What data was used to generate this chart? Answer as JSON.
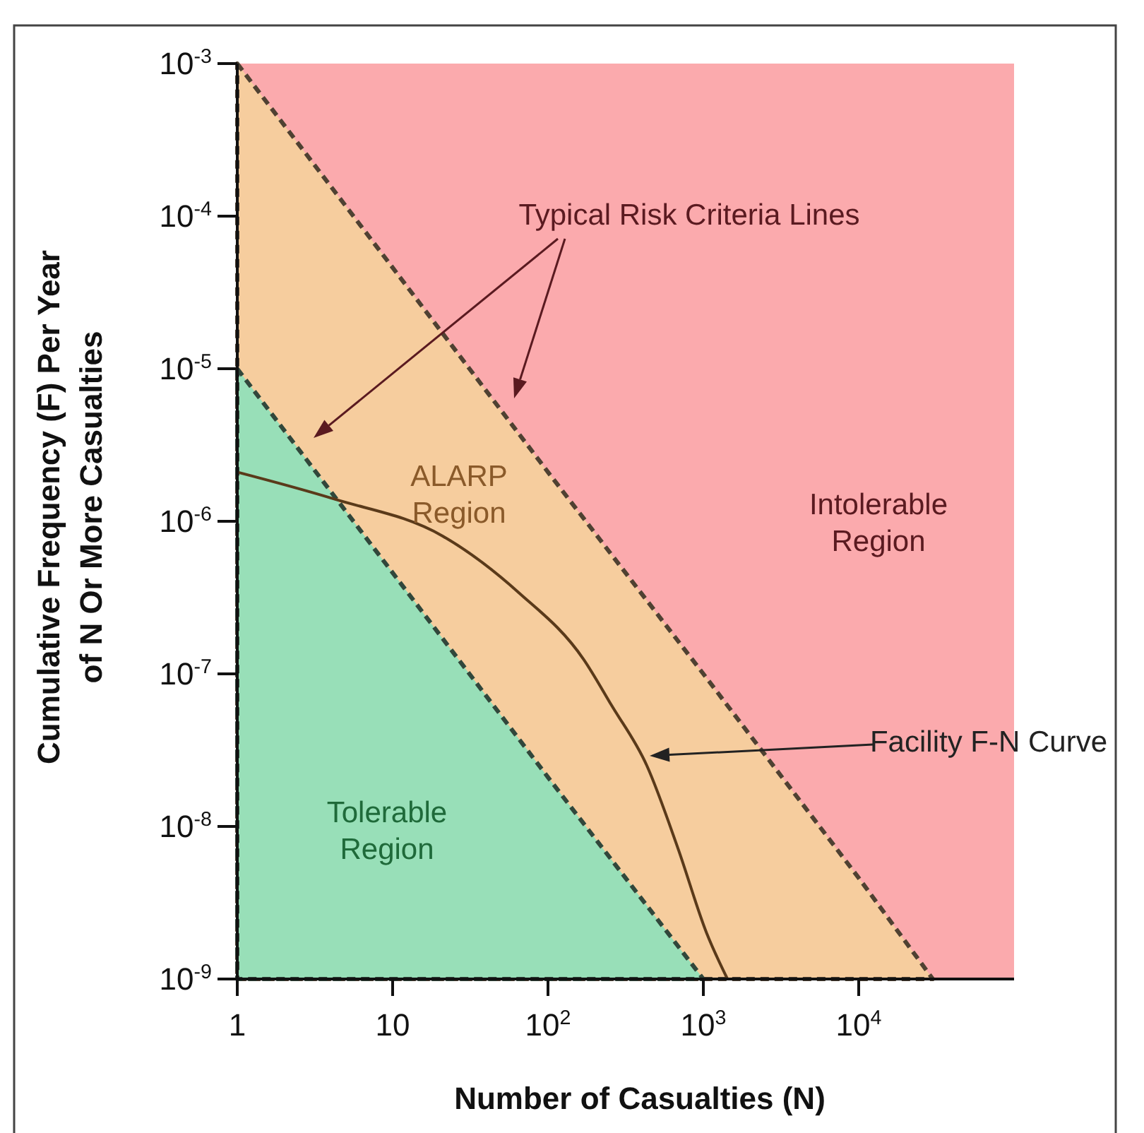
{
  "chart_data": {
    "type": "area",
    "xlabel": "Number of Casualties (N)",
    "ylabel": "Cumulative Frequency (F) Per Year\nof N Or More Casualties",
    "log": "xy",
    "xlim": [
      1,
      100000
    ],
    "ylim": [
      1e-09,
      0.001
    ],
    "xticks": [
      1,
      10,
      {
        "value": 100,
        "label": "10$^{2}$"
      },
      {
        "value": 1000,
        "label": "10$^{3}$"
      },
      {
        "value": 10000,
        "label": "10$^{4}$"
      }
    ],
    "yticks": [
      {
        "value": 1e-09,
        "label": "10$^{-9}$"
      },
      {
        "value": 1e-08,
        "label": "10$^{-8}$"
      },
      {
        "value": 1e-07,
        "label": "10$^{-7}$"
      },
      {
        "value": 1e-06,
        "label": "10$^{-6}$"
      },
      {
        "value": 1e-05,
        "label": "10$^{-5}$"
      },
      {
        "value": 0.0001,
        "label": "10$^{-4}$"
      },
      {
        "value": 0.001,
        "label": "10$^{-3}$"
      }
    ],
    "bands": [
      {
        "axis": "y",
        "from": 1e-09,
        "to": 0.001,
        "color": "#fbaaad"
      }
    ],
    "series": [
      {
        "color": "#f6cd9e",
        "line_style": "dashed",
        "x": [
          1,
          10,
          100,
          1000,
          10000,
          30000
        ],
        "values": [
          0.001,
          4.6e-05,
          2.1e-06,
          1e-07,
          4.6e-09,
          1e-09
        ]
      },
      {
        "color": "#98dfb8",
        "line_style": "dashed",
        "x": [
          1,
          10,
          100,
          1000
        ],
        "values": [
          1e-05,
          4.6e-07,
          2.1e-08,
          1e-09
        ]
      },
      {
        "type": "line",
        "color": "#5a3a1a",
        "line_style": "solid",
        "x": [
          1,
          4.2,
          21,
          65,
          170,
          257,
          433,
          686,
          1050,
          1430
        ],
        "values": [
          2.1e-06,
          1.4e-06,
          8e-07,
          3.4e-07,
          1.24e-07,
          6.2e-08,
          2.5e-08,
          7.2e-09,
          2e-09,
          1e-09
        ]
      }
    ],
    "annotations": [
      "Typical Risk Criteria Lines",
      "ALARP\nRegion",
      "Intolerable\nRegion",
      "Tolerable\nRegion",
      "Facility F-N Curve"
    ]
  }
}
